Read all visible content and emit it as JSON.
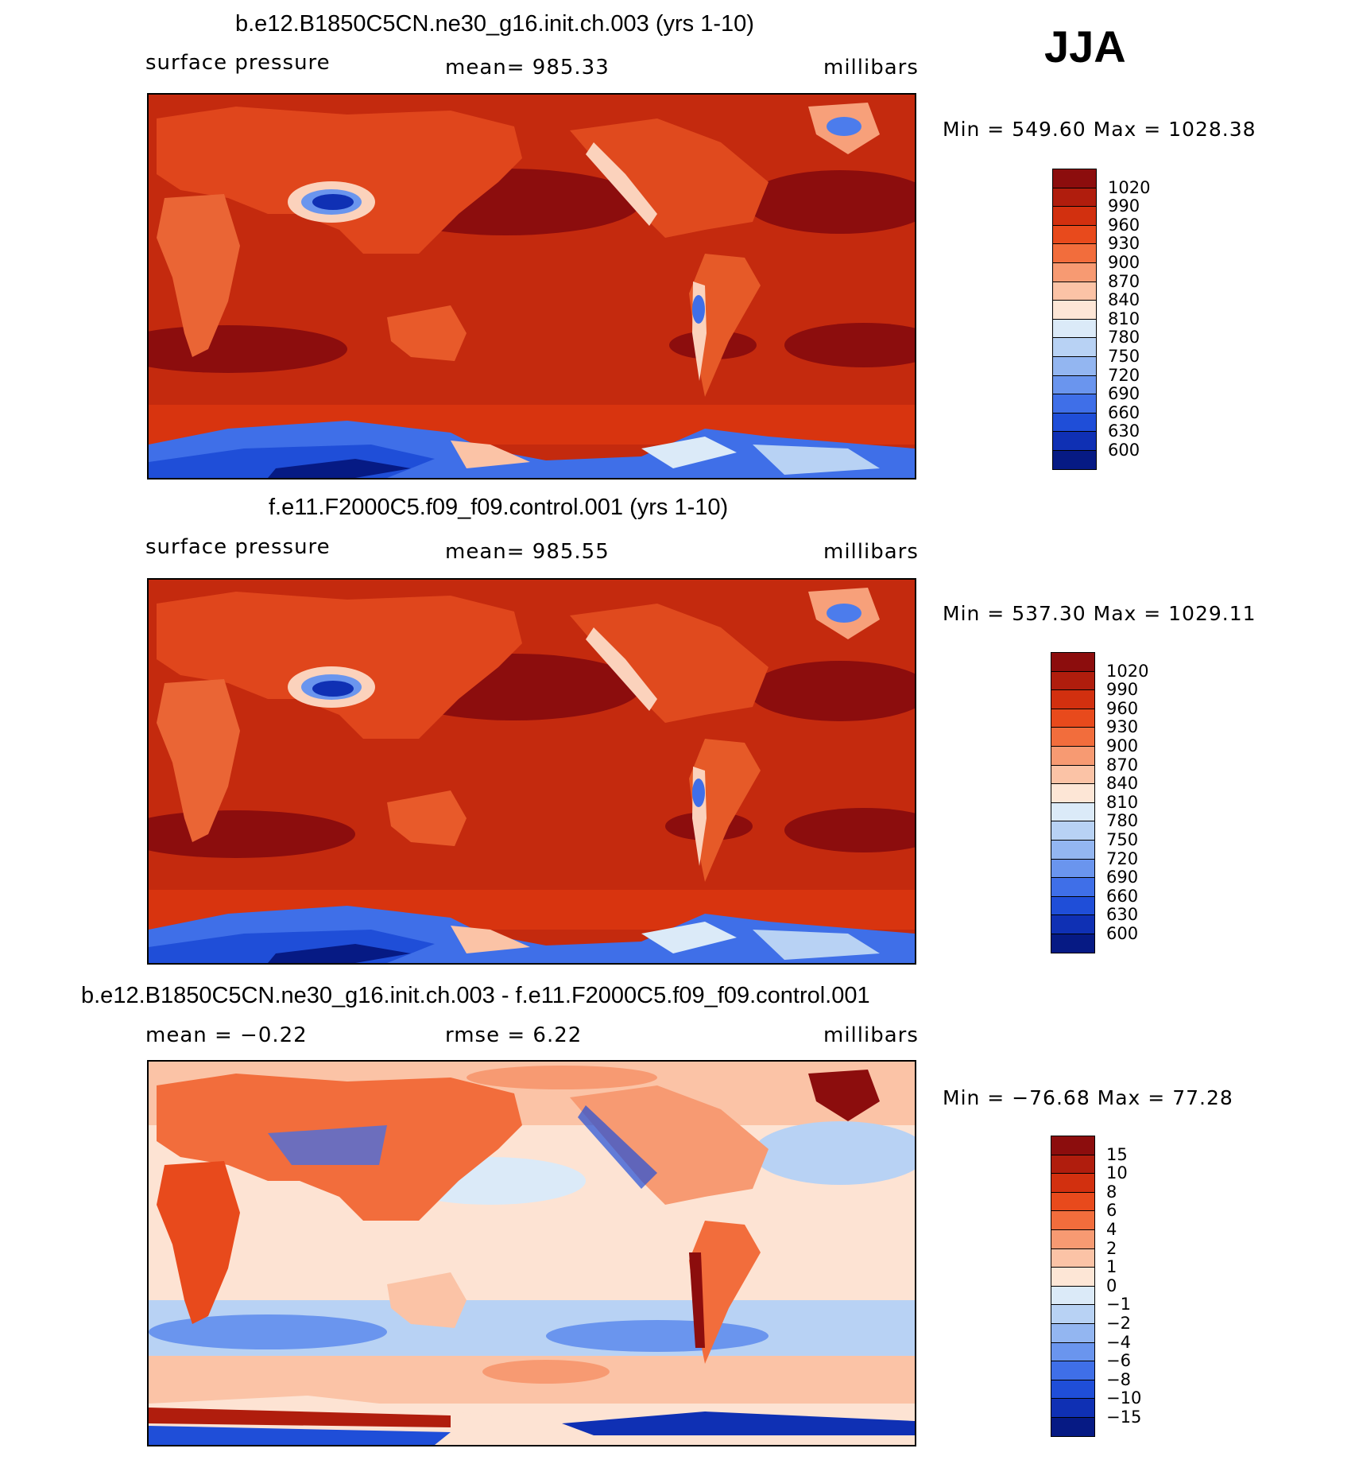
{
  "season": "JJA",
  "panels": [
    {
      "id": "p1",
      "title": "b.e12.B1850C5CN.ne30_g16.init.ch.003 (yrs 1-10)",
      "left_label": "surface pressure",
      "center_label": "mean=  985.33",
      "right_label": "millibars",
      "minmax": "Min  =  549.60  Max  =  1028.38",
      "map_fill": "#c42a0e"
    },
    {
      "id": "p2",
      "title": "f.e11.F2000C5.f09_f09.control.001 (yrs 1-10)",
      "left_label": "surface pressure",
      "center_label": "mean=  985.55",
      "right_label": "millibars",
      "minmax": "Min  =  537.30  Max  =  1029.11",
      "map_fill": "#c42a0e"
    },
    {
      "id": "p3",
      "title": "b.e12.B1850C5CN.ne30_g16.init.ch.003 - f.e11.F2000C5.f09_f09.control.001",
      "left_label": "mean  =   −0.22",
      "center_label": "rmse  =     6.22",
      "right_label": "millibars",
      "minmax": "Min  =  −76.68  Max  =   77.28",
      "map_fill": "#fde3d3"
    }
  ],
  "colorbar_abs": {
    "labels": [
      "1020",
      "990",
      "960",
      "930",
      "900",
      "870",
      "840",
      "810",
      "780",
      "750",
      "720",
      "690",
      "660",
      "630",
      "600"
    ],
    "colors": [
      "#8c0d0d",
      "#b01d0d",
      "#d2300f",
      "#e84a1c",
      "#f26d3c",
      "#f79a72",
      "#fbc3a6",
      "#fde6d6",
      "#dbeaf8",
      "#b8d2f4",
      "#93b6f1",
      "#6a95ee",
      "#3f6fe8",
      "#1f4ed8",
      "#0f30b4",
      "#061a84"
    ]
  },
  "colorbar_diff": {
    "labels": [
      "15",
      "10",
      "8",
      "6",
      "4",
      "2",
      "1",
      "0",
      "−1",
      "−2",
      "−4",
      "−6",
      "−8",
      "−10",
      "−15"
    ],
    "colors": [
      "#8c0d0d",
      "#b01d0d",
      "#d2300f",
      "#e84a1c",
      "#f26d3c",
      "#f79a72",
      "#fbc3a6",
      "#fde6d6",
      "#dbeaf8",
      "#b8d2f4",
      "#93b6f1",
      "#6a95ee",
      "#3f6fe8",
      "#1f4ed8",
      "#0f30b4",
      "#061a84"
    ]
  }
}
